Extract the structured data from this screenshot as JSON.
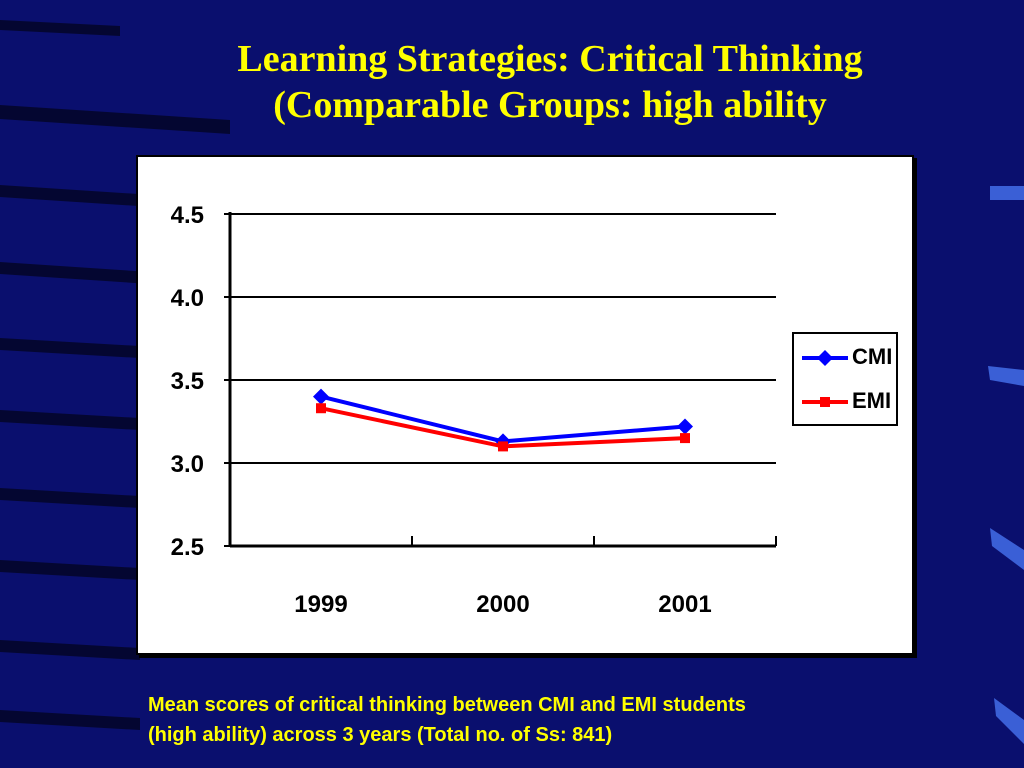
{
  "slide": {
    "title_line1": "Learning Strategies: Critical Thinking",
    "title_line2": "(Comparable Groups: high ability",
    "caption_line1": "Mean scores of critical thinking between CMI and EMI students",
    "caption_line2": "(high ability) across 3 years (Total no. of Ss: 841)"
  },
  "colors": {
    "background": "#0a0f6e",
    "title": "#ffff00",
    "cmi": "#0000ff",
    "emi": "#ff0000"
  },
  "chart_data": {
    "type": "line",
    "categories": [
      "1999",
      "2000",
      "2001"
    ],
    "y_ticks": [
      "2.5",
      "3.0",
      "3.5",
      "4.0",
      "4.5"
    ],
    "ylim": [
      2.5,
      4.5
    ],
    "grid": true,
    "legend_position": "right",
    "series": [
      {
        "name": "CMI",
        "marker": "diamond",
        "color": "#0000ff",
        "values": [
          3.4,
          3.13,
          3.22
        ]
      },
      {
        "name": "EMI",
        "marker": "square",
        "color": "#ff0000",
        "values": [
          3.33,
          3.1,
          3.15
        ]
      }
    ]
  }
}
